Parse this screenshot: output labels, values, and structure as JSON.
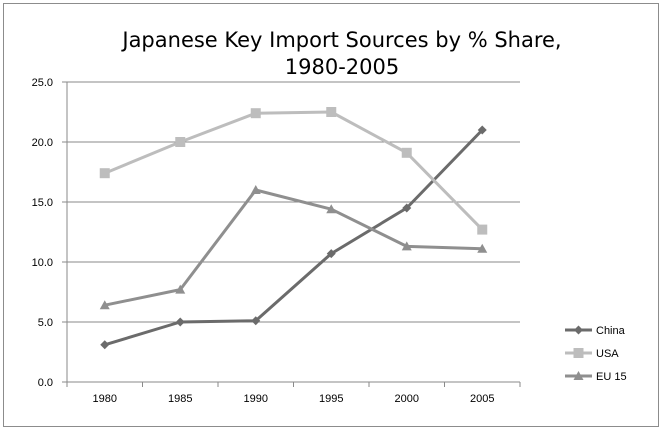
{
  "chart_data": {
    "type": "line",
    "title_lines": [
      "Japanese Key Import Sources by % Share,",
      "1980-2005"
    ],
    "title": "Japanese Key Import Sources by % Share, 1980-2005",
    "x": [
      "1980",
      "1985",
      "1990",
      "1995",
      "2000",
      "2005"
    ],
    "y_ticks": [
      "0.0",
      "5.0",
      "10.0",
      "15.0",
      "20.0",
      "25.0"
    ],
    "ylim": [
      0,
      25
    ],
    "grid": true,
    "legend_position": "right",
    "series": [
      {
        "name": "China",
        "values": [
          3.1,
          5.0,
          5.1,
          10.7,
          14.5,
          21.0
        ],
        "color": "#6b6b6b",
        "marker": "diamond"
      },
      {
        "name": "USA",
        "values": [
          17.4,
          20.0,
          22.4,
          22.5,
          19.1,
          12.7
        ],
        "color": "#bdbdbd",
        "marker": "square"
      },
      {
        "name": "EU 15",
        "values": [
          6.4,
          7.7,
          16.0,
          14.4,
          11.3,
          11.1
        ],
        "color": "#8f8f8f",
        "marker": "triangle"
      }
    ]
  }
}
